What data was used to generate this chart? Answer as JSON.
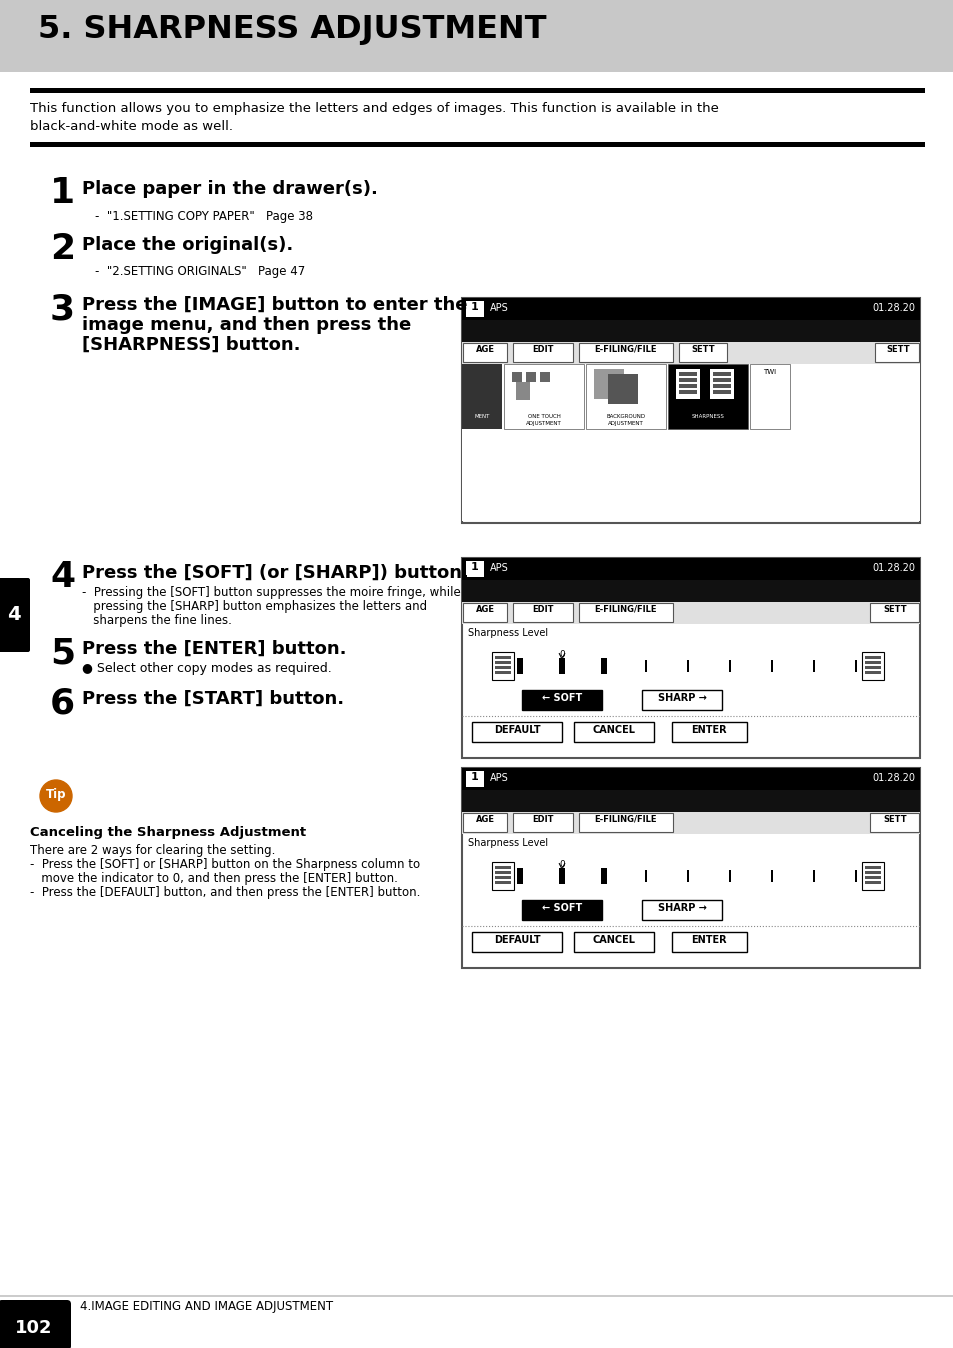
{
  "title": "5. SHARPNESS ADJUSTMENT",
  "title_bg": "#c8c8c8",
  "intro_text_line1": "This function allows you to emphasize the letters and edges of images. This function is available in the",
  "intro_text_line2": "black-and-white mode as well.",
  "step1_num": "1",
  "step1_title": "Place paper in the drawer(s).",
  "step1_sub": "-  \"1.SETTING COPY PAPER\"   Page 38",
  "step2_num": "2",
  "step2_title": "Place the original(s).",
  "step2_sub": "-  \"2.SETTING ORIGINALS\"   Page 47",
  "step3_num": "3",
  "step3_title_line1": "Press the [IMAGE] button to enter the",
  "step3_title_line2": "image menu, and then press the",
  "step3_title_line3": "[SHARPNESS] button.",
  "step4_num": "4",
  "step4_title": "Press the [SOFT] (or [SHARP]) button.",
  "step4_sub1": "-  Pressing the [SOFT] button suppresses the moire fringe, while",
  "step4_sub2": "   pressing the [SHARP] button emphasizes the letters and",
  "step4_sub3": "   sharpens the fine lines.",
  "step5_num": "5",
  "step5_title": "Press the [ENTER] button.",
  "step5_sub": "● Select other copy modes as required.",
  "step6_num": "6",
  "step6_title": "Press the [START] button.",
  "tip_label": "Tip",
  "tip_title": "Canceling the Sharpness Adjustment",
  "tip_text1": "There are 2 ways for clearing the setting.",
  "tip_text2": "-  Press the [SOFT] or [SHARP] button on the Sharpness column to",
  "tip_text3": "   move the indicator to 0, and then press the [ENTER] button.",
  "tip_text4": "-  Press the [DEFAULT] button, and then press the [ENTER] button.",
  "footer_num": "102",
  "footer_text": "4.IMAGE EDITING AND IMAGE ADJUSTMENT",
  "sidebar_num": "4",
  "bg_color": "#ffffff",
  "header_bg": "#c8c8c8"
}
